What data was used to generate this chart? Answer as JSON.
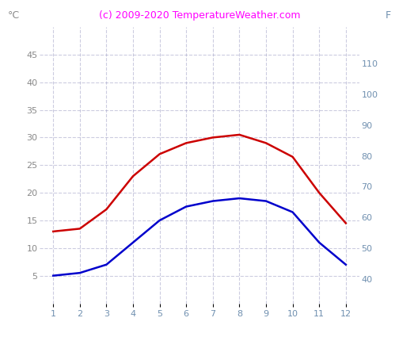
{
  "title": "(c) 2009-2020 TemperatureWeather.com",
  "title_color": "#ff00ff",
  "title_fontsize": 9,
  "label_left": "°C",
  "label_right": "F",
  "tick_color_left": "#888888",
  "tick_color_right": "#7090b0",
  "tick_color_x": "#7090b0",
  "x_ticks": [
    1,
    2,
    3,
    4,
    5,
    6,
    7,
    8,
    9,
    10,
    11,
    12
  ],
  "ylim_left": [
    0,
    50
  ],
  "ylim_right": [
    32,
    122
  ],
  "yticks_left": [
    5,
    10,
    15,
    20,
    25,
    30,
    35,
    40,
    45
  ],
  "yticks_right": [
    40,
    50,
    60,
    70,
    80,
    90,
    100,
    110
  ],
  "red_line": [
    13,
    13.5,
    17,
    23,
    27,
    29,
    30,
    30.5,
    29,
    26.5,
    20,
    14.5
  ],
  "blue_line": [
    5,
    5.5,
    7,
    11,
    15,
    17.5,
    18.5,
    19,
    18.5,
    16.5,
    11,
    7
  ],
  "red_color": "#cc0000",
  "blue_color": "#0000cc",
  "line_width": 1.8,
  "background_color": "#ffffff",
  "grid_color": "#aaaacc",
  "grid_style": "--",
  "grid_alpha": 0.6,
  "tick_fontsize": 8,
  "label_fontsize": 9
}
